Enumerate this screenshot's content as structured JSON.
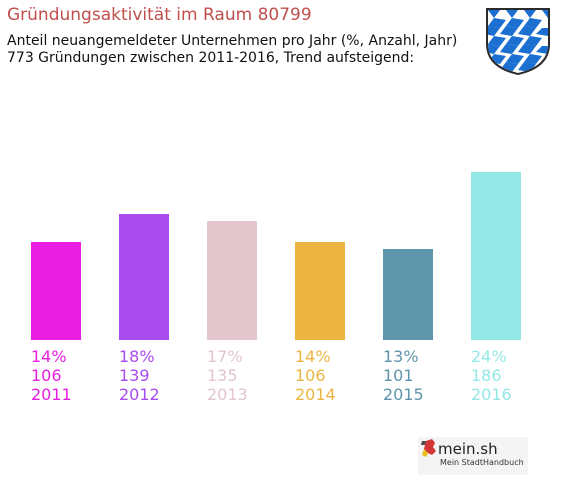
{
  "header": {
    "title": "Gründungsaktivität im Raum 80799",
    "subtitle_line1": "Anteil neuangemeldeter Unternehmen pro Jahr (%, Anzahl, Jahr)",
    "subtitle_line2": "773 Gründungen zwischen 2011-2016, Trend aufsteigend:"
  },
  "colors": {
    "title": "#c0504d",
    "bars": [
      "#e91ee0",
      "#a94cee",
      "#e2c5cd",
      "#ecb541",
      "#5e95ab",
      "#93e8e6"
    ]
  },
  "chart_data": {
    "type": "bar",
    "categories": [
      "2011",
      "2012",
      "2013",
      "2014",
      "2015",
      "2016"
    ],
    "values": [
      14,
      18,
      17,
      14,
      13,
      24
    ],
    "counts": [
      106,
      139,
      135,
      106,
      101,
      186
    ],
    "labels_pct": [
      "14%",
      "18%",
      "17%",
      "14%",
      "13%",
      "24%"
    ],
    "labels_count": [
      "106",
      "139",
      "135",
      "106",
      "101",
      "186"
    ],
    "total": "773",
    "trend": "aufsteigend",
    "ylim": [
      0,
      24
    ]
  },
  "logo": {
    "brand": "mein.sh",
    "tagline": "Mein StadtHandbuch"
  }
}
